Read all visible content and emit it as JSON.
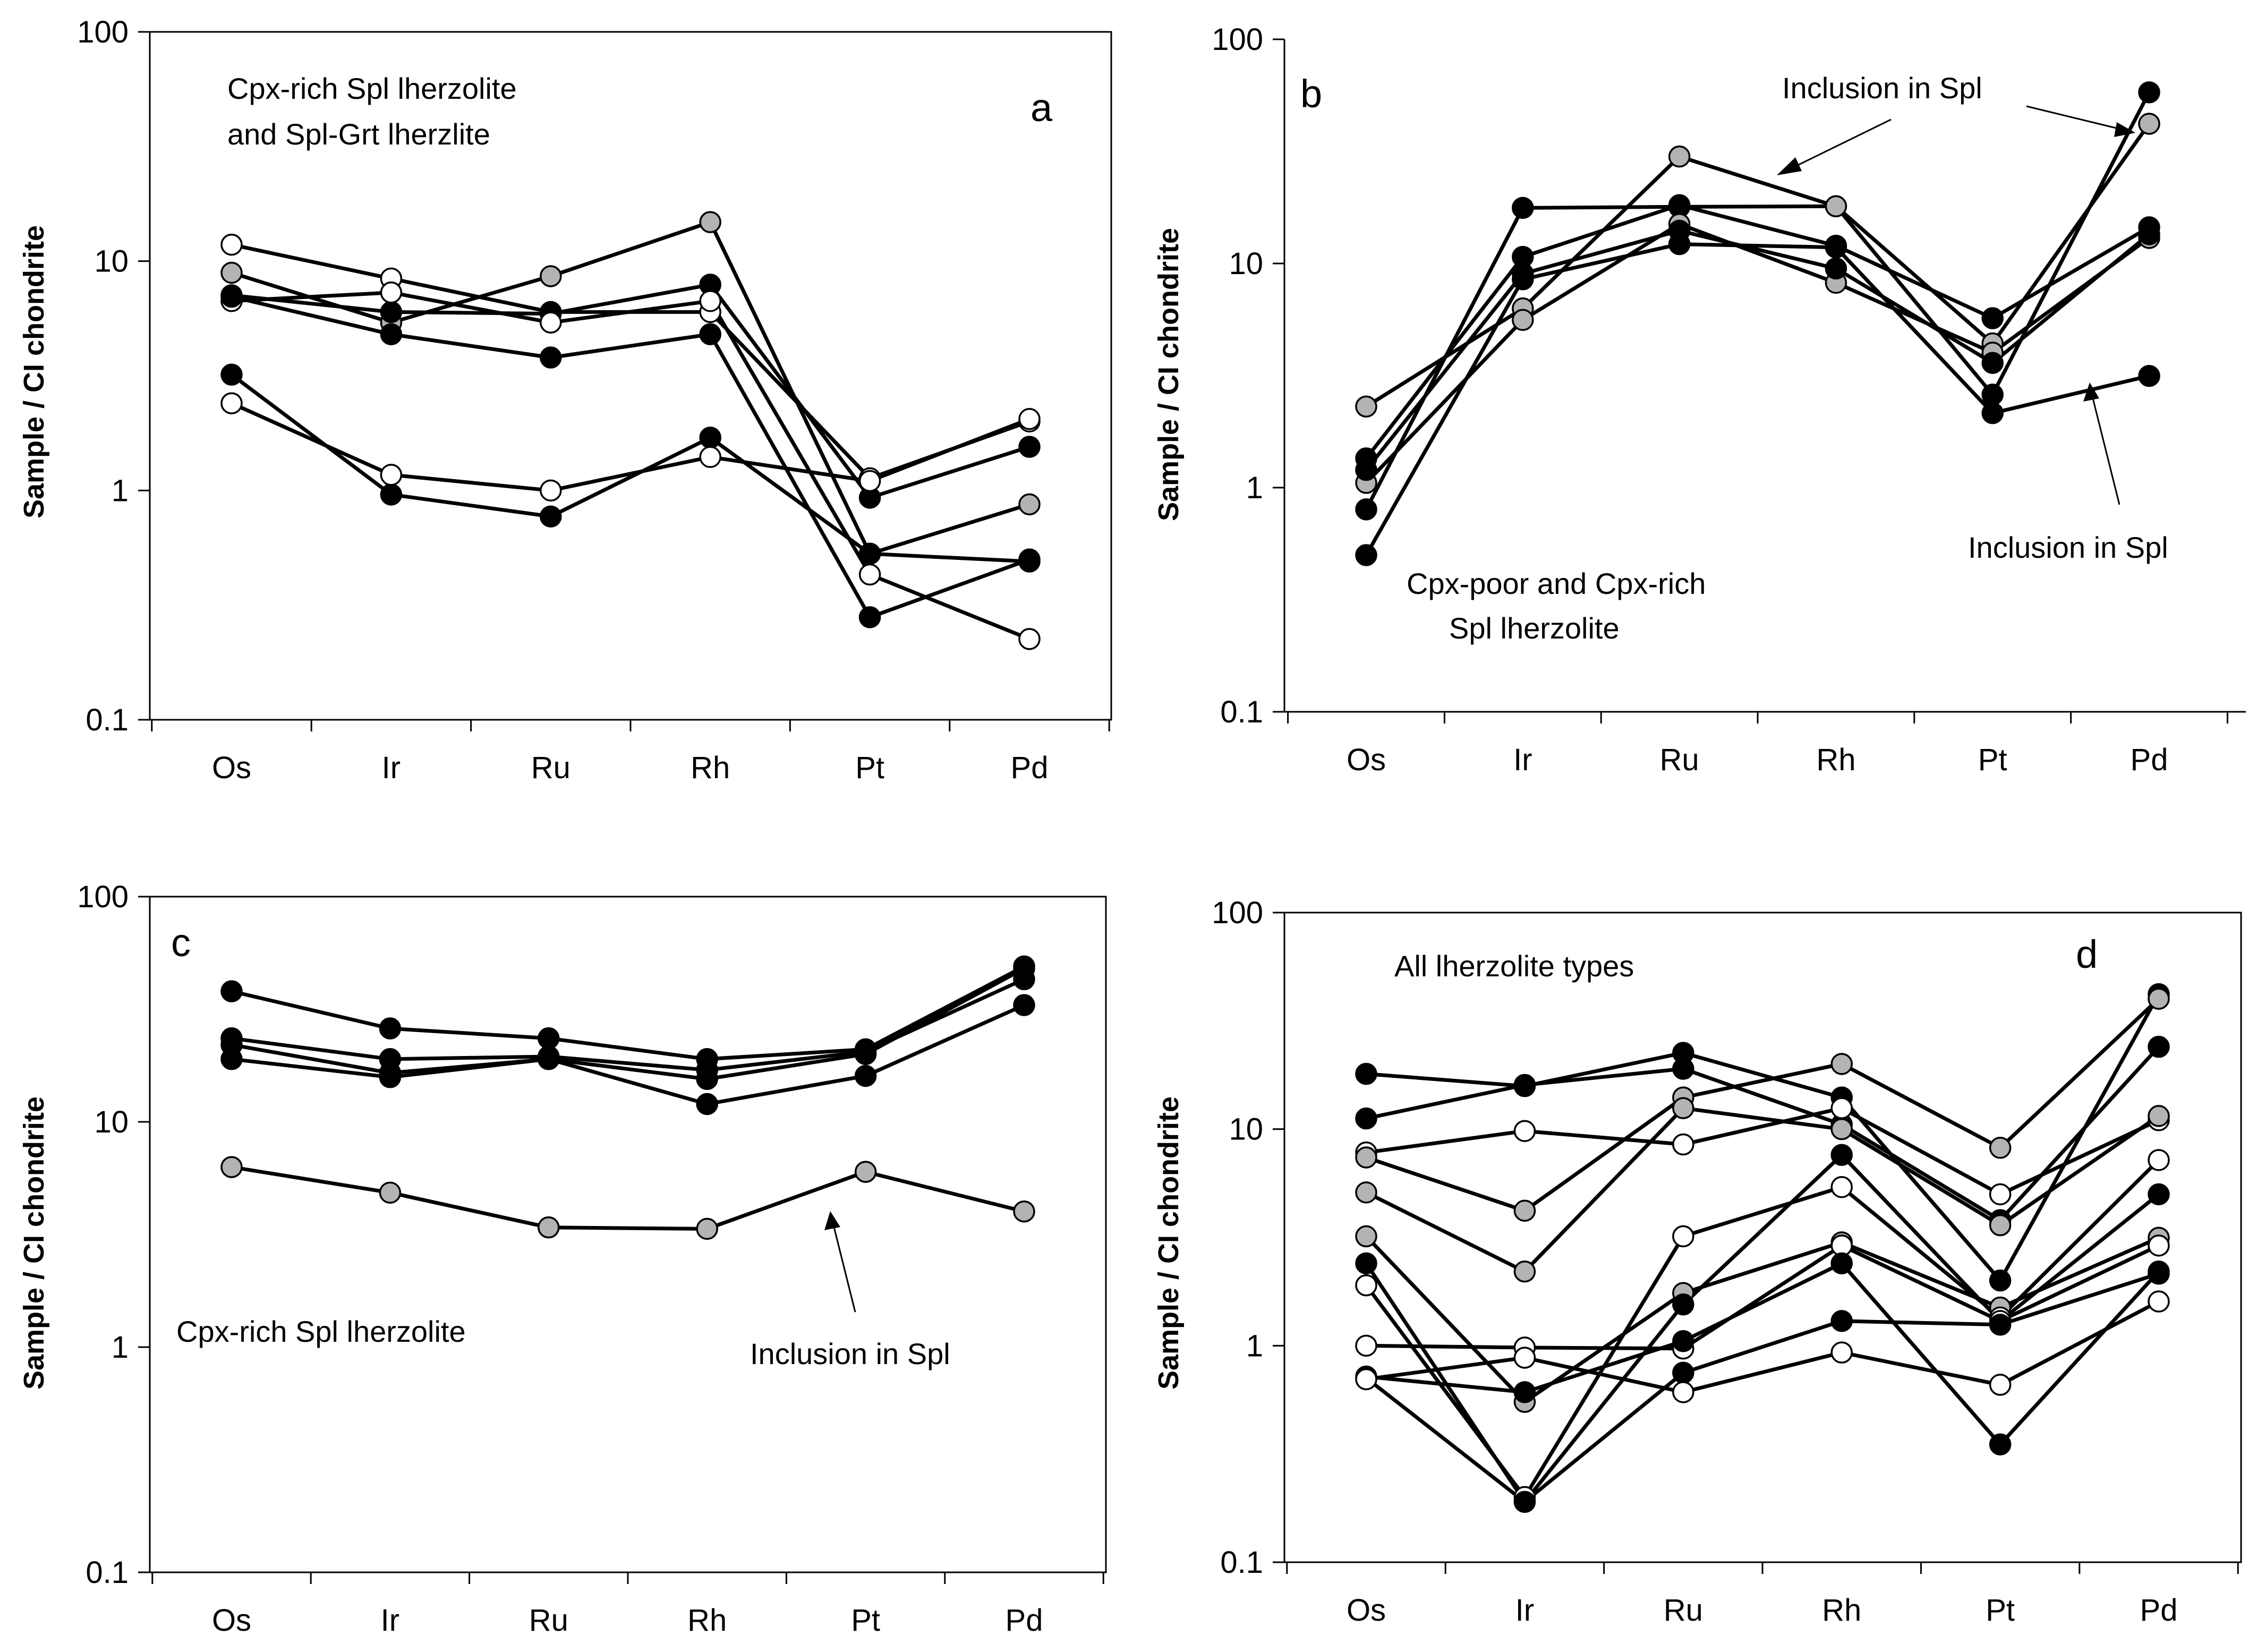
{
  "figure": {
    "y_axis_label": "Sample / CI chondrite",
    "categories": [
      "Os",
      "Ir",
      "Ru",
      "Rh",
      "Pt",
      "Pd"
    ],
    "y_tick_labels": [
      "0.1",
      "1",
      "10",
      "100"
    ],
    "marker_colors": {
      "black": "#000000",
      "gray": "#b3b3b3",
      "white": "#ffffff"
    }
  },
  "chart_data": [
    {
      "panel": "a",
      "type": "line",
      "yscale": "log",
      "ylim": [
        0.1,
        100
      ],
      "ylabel": "Sample / CI chondrite",
      "categories": [
        "Os",
        "Ir",
        "Ru",
        "Rh",
        "Pt",
        "Pd"
      ],
      "annotations": [
        "Cpx-rich Spl lherzolite",
        "and Spl-Grt lherzlite"
      ],
      "series": [
        {
          "marker": "white",
          "values": [
            11.8,
            8.4,
            6.0,
            6.0,
            1.13,
            2.0
          ]
        },
        {
          "marker": "gray",
          "values": [
            8.9,
            5.4,
            8.6,
            14.8,
            0.53,
            0.87
          ]
        },
        {
          "marker": "black",
          "values": [
            7.1,
            6.0,
            5.9,
            7.9,
            0.93,
            1.55
          ]
        },
        {
          "marker": "white",
          "values": [
            6.7,
            7.3,
            5.4,
            6.7,
            0.43,
            0.225
          ]
        },
        {
          "marker": "black",
          "values": [
            7.0,
            4.8,
            3.8,
            4.8,
            0.28,
            0.5
          ]
        },
        {
          "marker": "black",
          "values": [
            3.2,
            0.96,
            0.77,
            1.7,
            0.53,
            0.49
          ]
        },
        {
          "marker": "white",
          "values": [
            2.4,
            1.17,
            1.0,
            1.4,
            1.1,
            2.05
          ]
        }
      ]
    },
    {
      "panel": "b",
      "type": "line",
      "yscale": "log",
      "ylim": [
        0.1,
        100
      ],
      "ylabel": "Sample / CI chondrite",
      "categories": [
        "Os",
        "Ir",
        "Ru",
        "Rh",
        "Pt",
        "Pd"
      ],
      "annotations": [
        "Inclusion in Spl",
        "Inclusion in Spl",
        "Cpx-poor and Cpx-rich",
        "Spl lherzolite"
      ],
      "series": [
        {
          "marker": "black",
          "values": [
            0.8,
            17.7,
            17.9,
            18.0,
            2.6,
            58.0
          ]
        },
        {
          "marker": "gray",
          "values": [
            2.3,
            6.3,
            30.0,
            18.0,
            4.4,
            42.0
          ]
        },
        {
          "marker": "black",
          "values": [
            1.35,
            10.7,
            18.2,
            12.0,
            5.7,
            14.5
          ]
        },
        {
          "marker": "gray",
          "values": [
            1.05,
            5.6,
            15.0,
            8.2,
            4.0,
            13.0
          ]
        },
        {
          "marker": "black",
          "values": [
            1.2,
            9.0,
            14.0,
            9.5,
            3.6,
            13.5
          ]
        },
        {
          "marker": "black",
          "values": [
            0.5,
            8.5,
            12.2,
            11.8,
            2.15,
            3.15
          ]
        }
      ]
    },
    {
      "panel": "c",
      "type": "line",
      "yscale": "log",
      "ylim": [
        0.1,
        100
      ],
      "ylabel": "Sample / CI chondrite",
      "categories": [
        "Os",
        "Ir",
        "Ru",
        "Rh",
        "Pt",
        "Pd"
      ],
      "annotations": [
        "Cpx-rich Spl lherzolite",
        "Inclusion in Spl"
      ],
      "series": [
        {
          "marker": "black",
          "values": [
            38.0,
            26.0,
            23.5,
            19.0,
            21.0,
            49.0
          ]
        },
        {
          "marker": "black",
          "values": [
            23.5,
            19.0,
            19.5,
            17.0,
            20.5,
            43.0
          ]
        },
        {
          "marker": "black",
          "values": [
            22.0,
            16.5,
            19.0,
            15.5,
            20.0,
            48.0
          ]
        },
        {
          "marker": "black",
          "values": [
            19.0,
            15.8,
            19.0,
            12.0,
            16.0,
            33.0
          ]
        },
        {
          "marker": "gray",
          "values": [
            6.3,
            4.85,
            3.4,
            3.35,
            6.0,
            4.0
          ]
        }
      ]
    },
    {
      "panel": "d",
      "type": "line",
      "yscale": "log",
      "ylim": [
        0.1,
        100
      ],
      "ylabel": "Sample / CI chondrite",
      "categories": [
        "Os",
        "Ir",
        "Ru",
        "Rh",
        "Pt",
        "Pd"
      ],
      "annotations": [
        "All lherzolite types"
      ],
      "series": [
        {
          "marker": "black",
          "values": [
            18.0,
            15.8,
            22.5,
            14.0,
            2.0,
            42.0
          ]
        },
        {
          "marker": "black",
          "values": [
            11.2,
            16.0,
            19.0,
            10.5,
            3.8,
            24.0
          ]
        },
        {
          "marker": "white",
          "values": [
            7.8,
            9.8,
            8.5,
            12.5,
            5.0,
            11.0
          ]
        },
        {
          "marker": "gray",
          "values": [
            7.4,
            4.2,
            14.0,
            20.0,
            8.2,
            40.0
          ]
        },
        {
          "marker": "gray",
          "values": [
            5.1,
            2.2,
            12.5,
            10.0,
            3.6,
            11.5
          ]
        },
        {
          "marker": "gray",
          "values": [
            3.2,
            0.55,
            1.75,
            3.0,
            1.5,
            3.15
          ]
        },
        {
          "marker": "black",
          "values": [
            2.4,
            0.19,
            1.55,
            7.6,
            1.3,
            5.0
          ]
        },
        {
          "marker": "white",
          "values": [
            1.9,
            0.2,
            3.2,
            5.4,
            1.35,
            7.2
          ]
        },
        {
          "marker": "white",
          "values": [
            1.0,
            0.98,
            0.97,
            2.9,
            1.3,
            2.9
          ]
        },
        {
          "marker": "black",
          "values": [
            0.72,
            0.61,
            1.05,
            2.4,
            0.35,
            2.2
          ]
        },
        {
          "marker": "black",
          "values": [
            0.71,
            0.19,
            0.75,
            1.3,
            1.25,
            2.15
          ]
        },
        {
          "marker": "white",
          "values": [
            0.7,
            0.88,
            0.61,
            0.93,
            0.66,
            1.6
          ]
        }
      ]
    }
  ]
}
